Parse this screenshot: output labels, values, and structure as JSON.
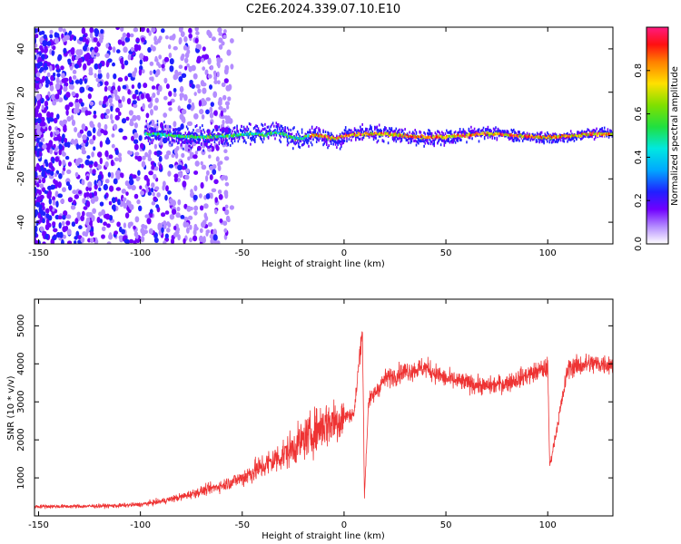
{
  "title": "C2E6.2024.339.07.10.E10",
  "chart_data": [
    {
      "type": "heatmap",
      "xlabel": "Height of straight line (km)",
      "ylabel": "Frequency (Hz)",
      "xlim": [
        -152,
        132
      ],
      "ylim": [
        -50,
        50
      ],
      "xticks": [
        -150,
        -100,
        -50,
        0,
        50,
        100
      ],
      "yticks": [
        -40,
        -20,
        0,
        20,
        40
      ],
      "colorbar": {
        "label": "Normalized spectral amplitude",
        "range": [
          0,
          1
        ],
        "ticks": [
          "0.0",
          "0.2",
          "0.4",
          "0.6",
          "0.8"
        ],
        "tick_values": [
          0.0,
          0.2,
          0.4,
          0.6,
          0.8
        ]
      },
      "features": {
        "scattered_noise_x_range": [
          -152,
          -55
        ],
        "band_start_x": -98,
        "band_center_hz": 0,
        "band_half_width_hz": [
          8,
          3
        ]
      }
    },
    {
      "type": "line",
      "xlabel": "Height of straight line (km)",
      "ylabel": "SNR (10 * v/v)",
      "xlim": [
        -152,
        132
      ],
      "ylim": [
        0,
        5700
      ],
      "xticks": [
        -150,
        -100,
        -50,
        0,
        50,
        100
      ],
      "yticks": [
        1000,
        2000,
        3000,
        4000,
        5000
      ],
      "series": [
        {
          "color": "#ee3333",
          "x": [
            -150,
            -130,
            -110,
            -100,
            -90,
            -80,
            -70,
            -60,
            -50,
            -40,
            -30,
            -20,
            -10,
            0,
            5,
            9,
            10,
            12,
            20,
            30,
            40,
            50,
            60,
            70,
            80,
            90,
            100,
            101,
            110,
            120,
            130
          ],
          "y": [
            250,
            250,
            270,
            300,
            380,
            500,
            650,
            800,
            1000,
            1300,
            1600,
            2000,
            2400,
            2600,
            2700,
            5000,
            500,
            3000,
            3600,
            3800,
            3900,
            3600,
            3500,
            3400,
            3500,
            3700,
            3900,
            1300,
            3900,
            4000,
            4000
          ]
        }
      ]
    }
  ]
}
